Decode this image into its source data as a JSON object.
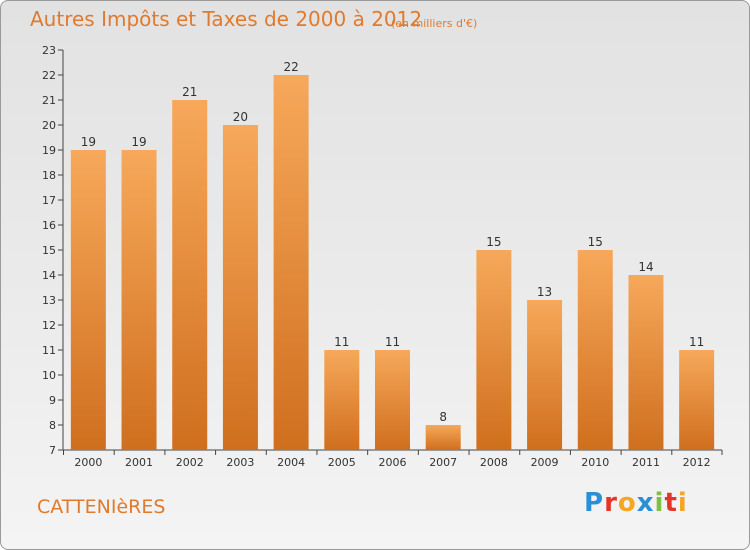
{
  "header": {
    "title": "Autres Impôts et Taxes de 2000 à 2012",
    "unit": "(en milliers d'€)"
  },
  "footer": {
    "commune": "CATTENIèRES",
    "logo": "Proxiti",
    "logo_colors": [
      "#2b8fd6",
      "#e4352b",
      "#f5a623",
      "#2b8fd6",
      "#7cc242",
      "#e4352b",
      "#f5a623"
    ]
  },
  "chart_data": {
    "type": "bar",
    "title": "Autres Impôts et Taxes de 2000 à 2012",
    "subtitle": "(en milliers d'€)",
    "xlabel": "",
    "ylabel": "",
    "categories": [
      "2000",
      "2001",
      "2002",
      "2003",
      "2004",
      "2005",
      "2006",
      "2007",
      "2008",
      "2009",
      "2010",
      "2011",
      "2012"
    ],
    "values": [
      19,
      19,
      21,
      20,
      22,
      11,
      11,
      8,
      15,
      13,
      15,
      14,
      11
    ],
    "ylim": [
      7,
      23
    ],
    "yticks": [
      7,
      8,
      9,
      10,
      11,
      12,
      13,
      14,
      15,
      16,
      17,
      18,
      19,
      20,
      21,
      22,
      23
    ],
    "bar_color_top": "#f7a85a",
    "bar_color_bottom": "#cf6f1e",
    "grid": false
  }
}
